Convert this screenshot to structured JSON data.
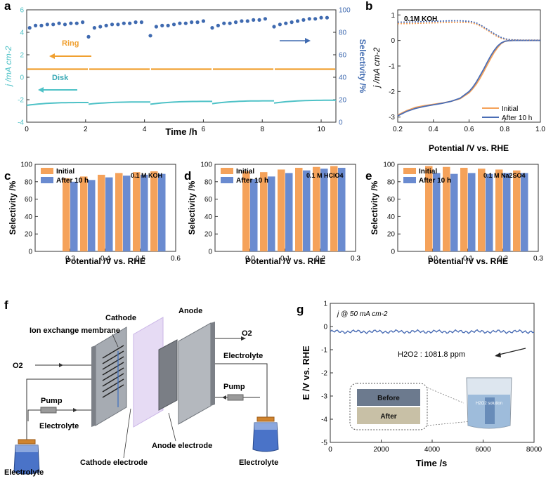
{
  "colors": {
    "orange": "#F5A25A",
    "ring": "#F0A030",
    "disk": "#4FC2C7",
    "blue": "#4A6DB5",
    "selDot": "#3F6AB0",
    "diskText": "#3AA9B5",
    "barBlue": "#6A8BD0",
    "grey": "#BFC3C9"
  },
  "panel_labels": {
    "a": "a",
    "b": "b",
    "c": "c",
    "d": "d",
    "e": "e",
    "f": "f",
    "g": "g"
  },
  "chart_data": [
    {
      "id": "a",
      "type": "scatter",
      "xlabel": "Time /h",
      "ylabel": "j /mA cm-2",
      "ylabel2": "Selectivity /%",
      "xlim": [
        0,
        10.5
      ],
      "ylim": [
        -4,
        6
      ],
      "ylim2": [
        0,
        100
      ],
      "xticks": [
        0,
        2,
        4,
        6,
        8,
        10
      ],
      "yticks": [
        -4,
        -2,
        0,
        2,
        4,
        6
      ],
      "yticks2": [
        0,
        20,
        40,
        60,
        80,
        100
      ],
      "annotations": {
        "ring": "Ring",
        "disk": "Disk"
      },
      "ring_current": 0.72,
      "disk_segments": [
        {
          "t0": 0.0,
          "t1": 2.1,
          "j0": -2.5,
          "j1": -2.25
        },
        {
          "t0": 2.1,
          "t1": 4.2,
          "j0": -2.4,
          "j1": -2.2
        },
        {
          "t0": 4.2,
          "t1": 6.3,
          "j0": -2.4,
          "j1": -2.15
        },
        {
          "t0": 6.3,
          "t1": 8.4,
          "j0": -2.35,
          "j1": -2.1
        },
        {
          "t0": 8.4,
          "t1": 10.5,
          "j0": -2.3,
          "j1": -2.05
        }
      ],
      "selectivity": {
        "t": [
          0.1,
          0.3,
          0.5,
          0.7,
          0.9,
          1.1,
          1.3,
          1.5,
          1.7,
          1.9,
          2.1,
          2.3,
          2.5,
          2.7,
          2.9,
          3.1,
          3.3,
          3.5,
          3.7,
          3.9,
          4.2,
          4.4,
          4.6,
          4.8,
          5.0,
          5.2,
          5.4,
          5.6,
          5.8,
          6.0,
          6.3,
          6.5,
          6.7,
          6.9,
          7.1,
          7.3,
          7.5,
          7.7,
          7.9,
          8.1,
          8.4,
          8.6,
          8.8,
          9.0,
          9.2,
          9.4,
          9.6,
          9.8,
          10.0,
          10.2
        ],
        "values": [
          84,
          86,
          86,
          87,
          87,
          88,
          87,
          88,
          88,
          89,
          76,
          84,
          85,
          86,
          87,
          87,
          88,
          88,
          89,
          89,
          77,
          85,
          86,
          86,
          87,
          88,
          88,
          89,
          89,
          90,
          84,
          86,
          88,
          88,
          89,
          90,
          90,
          91,
          91,
          92,
          85,
          87,
          88,
          89,
          90,
          91,
          92,
          92,
          93,
          93
        ]
      }
    },
    {
      "id": "b",
      "type": "line",
      "xlabel": "Potential /V vs. RHE",
      "ylabel": "j /mA cm-2",
      "title": "0.1M KOH",
      "xlim": [
        0.2,
        1.0
      ],
      "ylim": [
        -3.2,
        1.2
      ],
      "xticks": [
        0.2,
        0.4,
        0.6,
        0.8,
        1.0
      ],
      "yticks": [
        -3,
        -2,
        -1,
        0,
        1
      ],
      "legend": [
        "Initial",
        "After 10 h"
      ],
      "x": [
        0.2,
        0.25,
        0.3,
        0.35,
        0.4,
        0.45,
        0.5,
        0.55,
        0.6,
        0.62,
        0.64,
        0.66,
        0.68,
        0.7,
        0.72,
        0.74,
        0.76,
        0.78,
        0.8,
        0.82,
        0.85,
        0.9,
        0.95,
        1.0
      ],
      "series": [
        {
          "name": "Initial",
          "values": [
            -2.92,
            -2.75,
            -2.62,
            -2.55,
            -2.5,
            -2.45,
            -2.38,
            -2.28,
            -2.05,
            -1.9,
            -1.72,
            -1.5,
            -1.25,
            -0.98,
            -0.72,
            -0.48,
            -0.28,
            -0.12,
            -0.04,
            -0.01,
            0.0,
            0.0,
            0.0,
            0.0
          ]
        },
        {
          "name": "After 10 h",
          "values": [
            -2.95,
            -2.78,
            -2.66,
            -2.58,
            -2.52,
            -2.46,
            -2.38,
            -2.26,
            -2.0,
            -1.84,
            -1.64,
            -1.4,
            -1.15,
            -0.88,
            -0.62,
            -0.4,
            -0.22,
            -0.1,
            -0.03,
            -0.01,
            0.0,
            0.0,
            0.0,
            0.0
          ]
        },
        {
          "name": "Initial ring",
          "values": [
            0.66,
            0.66,
            0.67,
            0.68,
            0.69,
            0.7,
            0.71,
            0.71,
            0.7,
            0.68,
            0.64,
            0.58,
            0.5,
            0.41,
            0.32,
            0.23,
            0.15,
            0.09,
            0.05,
            0.03,
            0.02,
            0.01,
            0.01,
            0.01
          ]
        },
        {
          "name": "After 10 h ring",
          "values": [
            0.72,
            0.72,
            0.73,
            0.74,
            0.75,
            0.76,
            0.77,
            0.77,
            0.75,
            0.73,
            0.69,
            0.62,
            0.54,
            0.45,
            0.36,
            0.27,
            0.19,
            0.12,
            0.07,
            0.04,
            0.02,
            0.01,
            0.01,
            0.01
          ]
        }
      ]
    },
    {
      "id": "c",
      "type": "bar",
      "xlabel": "Potential /V vs. RHE",
      "ylabel": "Selectivity /%",
      "title": "0.1 M KOH",
      "legend": [
        "Initial",
        "After 10 h"
      ],
      "xlim": [
        0.2,
        0.6
      ],
      "ylim": [
        0,
        100
      ],
      "xticks": [
        0.3,
        0.4,
        0.5,
        0.6
      ],
      "yticks": [
        0,
        20,
        40,
        60,
        80,
        100
      ],
      "x": [
        0.3,
        0.35,
        0.4,
        0.45,
        0.5,
        0.55
      ],
      "series": [
        {
          "name": "Initial",
          "values": [
            84,
            86,
            88,
            90,
            91,
            92
          ]
        },
        {
          "name": "After 10 h",
          "values": [
            80,
            82,
            85,
            87,
            88,
            89
          ]
        }
      ]
    },
    {
      "id": "d",
      "type": "bar",
      "xlabel": "Potential /V vs. RHE",
      "ylabel": "Selectivity /%",
      "title": "0.1 M HClO4",
      "legend": [
        "Initial",
        "After 10 h"
      ],
      "xlim": [
        -0.1,
        0.3
      ],
      "ylim": [
        0,
        100
      ],
      "xticks": [
        0.0,
        0.1,
        0.2,
        0.3
      ],
      "yticks": [
        0,
        20,
        40,
        60,
        80,
        100
      ],
      "x": [
        0.0,
        0.05,
        0.1,
        0.15,
        0.2,
        0.25
      ],
      "series": [
        {
          "name": "Initial",
          "values": [
            92,
            91,
            94,
            96,
            97,
            98
          ]
        },
        {
          "name": "After 10 h",
          "values": [
            83,
            86,
            90,
            93,
            95,
            96
          ]
        }
      ]
    },
    {
      "id": "e",
      "type": "bar",
      "xlabel": "Potential /V vs. RHE",
      "ylabel": "Selectivity /%",
      "title": "0.1 M Na2SO4",
      "legend": [
        "Initial",
        "After 10 h"
      ],
      "xlim": [
        -0.1,
        0.3
      ],
      "ylim": [
        0,
        100
      ],
      "xticks": [
        0.0,
        0.1,
        0.2,
        0.3
      ],
      "yticks": [
        0,
        20,
        40,
        60,
        80,
        100
      ],
      "x": [
        0.0,
        0.05,
        0.1,
        0.15,
        0.2,
        0.25
      ],
      "series": [
        {
          "name": "Initial",
          "values": [
            98,
            97,
            96,
            95,
            94,
            93
          ]
        },
        {
          "name": "After 10 h",
          "values": [
            90,
            89,
            90,
            89,
            90,
            90
          ]
        }
      ]
    },
    {
      "id": "g",
      "type": "line",
      "xlabel": "Time /s",
      "ylabel": "E /V vs. RHE",
      "annotation": "j @ 50 mA cm-2",
      "h2o2_label": "H2O2 : 1081.8 ppm",
      "xlim": [
        0,
        8000
      ],
      "ylim": [
        -5,
        1
      ],
      "xticks": [
        0,
        2000,
        4000,
        6000,
        8000
      ],
      "yticks": [
        -5,
        -4,
        -3,
        -2,
        -1,
        0,
        1
      ],
      "series": [
        {
          "name": "E",
          "level": -0.22
        }
      ],
      "inset": {
        "before": "Before",
        "after": "After",
        "solution": "H2O2 solution"
      }
    }
  ],
  "diagram_f": {
    "cathode": "Cathode",
    "anode": "Anode",
    "membrane": "Ion exchange membrane",
    "o2_left": "O2",
    "o2_right": "O2",
    "pump_left": "Pump",
    "pump_right": "Pump",
    "electrolyte_left_mid": "Electrolyte",
    "electrolyte_left_bottom": "Electrolyte",
    "electrolyte_right_top": "Electrolyte",
    "electrolyte_right_bottom": "Electrolyte",
    "cathode_electrode": "Cathode electrode",
    "anode_electrode": "Anode electrode"
  }
}
